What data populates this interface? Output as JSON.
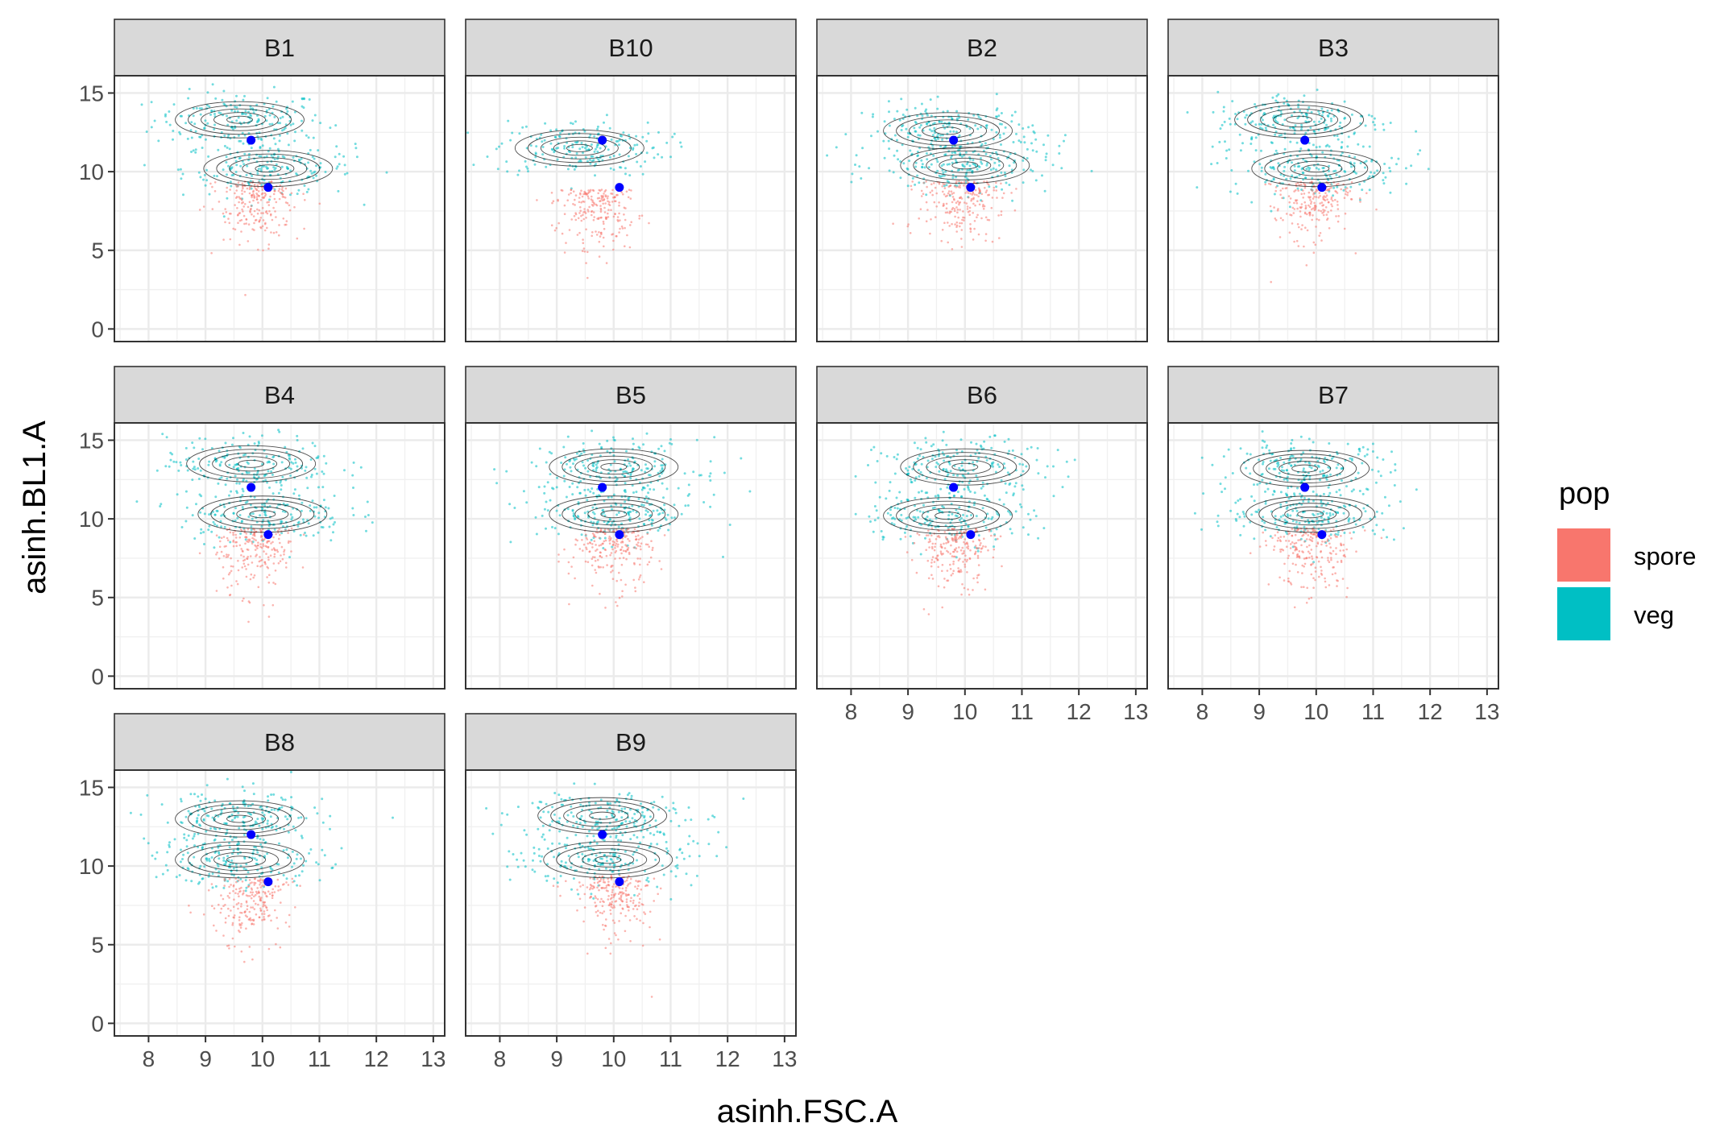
{
  "chart_data": {
    "type": "scatter",
    "xlabel": "asinh.FSC.A",
    "ylabel": "asinh.BL1.A",
    "xlim": [
      7.4,
      13.2
    ],
    "ylim": [
      -0.8,
      16.1
    ],
    "x_ticks": [
      8,
      9,
      10,
      11,
      12,
      13
    ],
    "y_ticks": [
      0,
      5,
      10,
      15
    ],
    "grid": true,
    "legend_position": "right",
    "legend": {
      "title": "pop",
      "entries": [
        {
          "label": "spore",
          "color": "#F8766D"
        },
        {
          "label": "veg",
          "color": "#00BFC4"
        }
      ]
    },
    "center_points": [
      {
        "x": 9.8,
        "y": 12.0
      },
      {
        "x": 10.1,
        "y": 9.0
      }
    ],
    "center_color": "#0000FF",
    "contour_color": "#000000",
    "panels": [
      {
        "label": "B1",
        "veg": [
          {
            "x": 9.6,
            "y": 13.3
          },
          {
            "x": 10.1,
            "y": 10.2
          }
        ],
        "spore": {
          "x": 9.9,
          "y": 9.0
        }
      },
      {
        "label": "B10",
        "veg": [
          {
            "x": 9.4,
            "y": 11.5
          }
        ],
        "spore": {
          "x": 9.7,
          "y": 8.5
        }
      },
      {
        "label": "B2",
        "veg": [
          {
            "x": 9.7,
            "y": 12.6
          },
          {
            "x": 10.0,
            "y": 10.4
          }
        ],
        "spore": {
          "x": 9.9,
          "y": 9.0
        }
      },
      {
        "label": "B3",
        "veg": [
          {
            "x": 9.7,
            "y": 13.3
          },
          {
            "x": 10.0,
            "y": 10.2
          }
        ],
        "spore": {
          "x": 9.9,
          "y": 9.0
        }
      },
      {
        "label": "B4",
        "veg": [
          {
            "x": 9.8,
            "y": 13.5
          },
          {
            "x": 10.0,
            "y": 10.3
          }
        ],
        "spore": {
          "x": 9.9,
          "y": 9.0
        }
      },
      {
        "label": "B5",
        "veg": [
          {
            "x": 10.0,
            "y": 13.3
          },
          {
            "x": 10.0,
            "y": 10.3
          }
        ],
        "spore": {
          "x": 10.0,
          "y": 9.0
        }
      },
      {
        "label": "B6",
        "veg": [
          {
            "x": 10.0,
            "y": 13.3
          },
          {
            "x": 9.7,
            "y": 10.2
          }
        ],
        "spore": {
          "x": 9.8,
          "y": 9.0
        }
      },
      {
        "label": "B7",
        "veg": [
          {
            "x": 9.8,
            "y": 13.2
          },
          {
            "x": 9.9,
            "y": 10.3
          }
        ],
        "spore": {
          "x": 9.9,
          "y": 9.0
        }
      },
      {
        "label": "B8",
        "veg": [
          {
            "x": 9.6,
            "y": 13.0
          },
          {
            "x": 9.6,
            "y": 10.4
          }
        ],
        "spore": {
          "x": 9.8,
          "y": 8.8
        }
      },
      {
        "label": "B9",
        "veg": [
          {
            "x": 9.8,
            "y": 13.2
          },
          {
            "x": 9.9,
            "y": 10.4
          }
        ],
        "spore": {
          "x": 10.0,
          "y": 9.0
        }
      }
    ]
  }
}
